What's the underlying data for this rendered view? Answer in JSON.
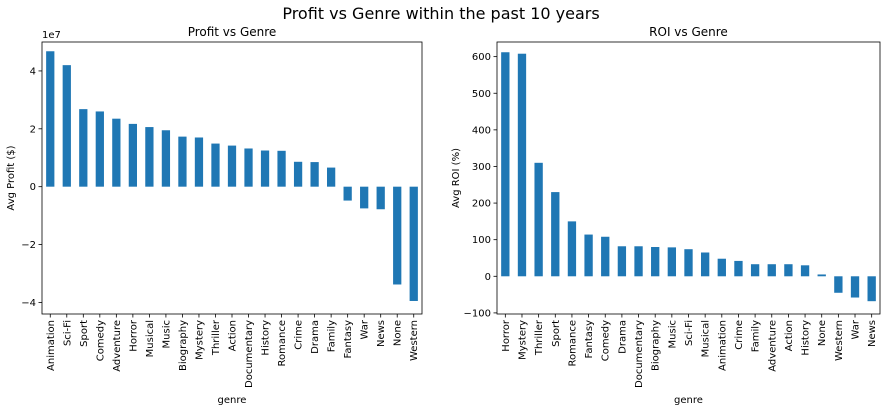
{
  "figure": {
    "title": "Profit vs Genre within the past 10 years"
  },
  "colors": {
    "bar": "#1f77b4"
  },
  "chart_data": [
    {
      "type": "bar",
      "title": "Profit vs Genre",
      "xlabel": "genre",
      "ylabel": "Avg Profit ($)",
      "y_offset_label": "1e7",
      "y_tick_scale": 10000000,
      "ylim": [
        -44000000,
        50000000
      ],
      "yticks": [
        -40000000,
        -20000000,
        0,
        20000000,
        40000000
      ],
      "ytick_labels": [
        "−4",
        "−2",
        "0",
        "2",
        "4"
      ],
      "categories": [
        "Animation",
        "Sci-Fi",
        "Sport",
        "Comedy",
        "Adventure",
        "Horror",
        "Musical",
        "Music",
        "Biography",
        "Mystery",
        "Thriller",
        "Action",
        "Documentary",
        "History",
        "Romance",
        "Crime",
        "Drama",
        "Family",
        "Fantasy",
        "War",
        "News",
        "None",
        "Western"
      ],
      "values": [
        46800000,
        42000000,
        26800000,
        26000000,
        23500000,
        21700000,
        20600000,
        19500000,
        17300000,
        17000000,
        14900000,
        14200000,
        13200000,
        12500000,
        12400000,
        8600000,
        8500000,
        6600000,
        -4800000,
        -7500000,
        -7800000,
        -33800000,
        -39500000
      ],
      "grid": false,
      "legend": "none"
    },
    {
      "type": "bar",
      "title": "ROI vs Genre",
      "xlabel": "genre",
      "ylabel": "Avg ROI (%)",
      "ylim": [
        -103,
        640
      ],
      "yticks": [
        -100,
        0,
        100,
        200,
        300,
        400,
        500,
        600
      ],
      "ytick_labels": [
        "−100",
        "0",
        "100",
        "200",
        "300",
        "400",
        "500",
        "600"
      ],
      "categories": [
        "Horror",
        "Mystery",
        "Thriller",
        "Sport",
        "Romance",
        "Fantasy",
        "Comedy",
        "Drama",
        "Documentary",
        "Biography",
        "Music",
        "Sci-Fi",
        "Musical",
        "Animation",
        "Crime",
        "Family",
        "Adventure",
        "Action",
        "History",
        "None",
        "Western",
        "War",
        "News"
      ],
      "values": [
        612,
        608,
        310,
        230,
        150,
        114,
        108,
        82,
        82,
        80,
        79,
        74,
        65,
        48,
        42,
        33,
        33,
        33,
        30,
        5,
        -45,
        -58,
        -68
      ],
      "grid": false,
      "legend": "none"
    }
  ]
}
